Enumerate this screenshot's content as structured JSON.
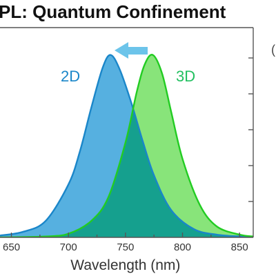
{
  "page": {
    "title": "PL: Quantum Confinement"
  },
  "chart_data": {
    "type": "area",
    "title": "PL: Quantum Confinement",
    "xlabel": "Wavelength (nm)",
    "ylabel": "",
    "xlim": [
      640,
      862
    ],
    "ylim": [
      0,
      1.15
    ],
    "xticks": [
      650,
      700,
      750,
      800,
      850
    ],
    "xtick_labels": [
      "650",
      "700",
      "750",
      "800",
      "850"
    ],
    "grid": false,
    "series": [
      {
        "name": "2D",
        "color": "#1a86c9",
        "fill": "#56b0e0",
        "x": [
          640,
          660,
          680,
          700,
          710,
          720,
          730,
          737,
          745,
          755,
          765,
          775,
          790,
          810,
          830,
          850,
          862
        ],
        "y": [
          0.01,
          0.03,
          0.09,
          0.29,
          0.47,
          0.71,
          0.93,
          1.0,
          0.92,
          0.74,
          0.53,
          0.34,
          0.15,
          0.045,
          0.015,
          0.005,
          0.003
        ]
      },
      {
        "name": "3D",
        "color": "#22cc22",
        "fill": "#88e47a",
        "x": [
          640,
          680,
          700,
          720,
          735,
          750,
          760,
          767,
          774,
          782,
          790,
          800,
          815,
          830,
          850,
          862
        ],
        "y": [
          0.0,
          0.005,
          0.02,
          0.09,
          0.22,
          0.52,
          0.8,
          0.95,
          1.0,
          0.9,
          0.69,
          0.43,
          0.18,
          0.06,
          0.015,
          0.005
        ]
      }
    ],
    "overlap_fill": "#15a08e",
    "annotation": {
      "type": "arrow",
      "direction": "left",
      "color": "#6cc4ea"
    },
    "partial_text": "("
  }
}
